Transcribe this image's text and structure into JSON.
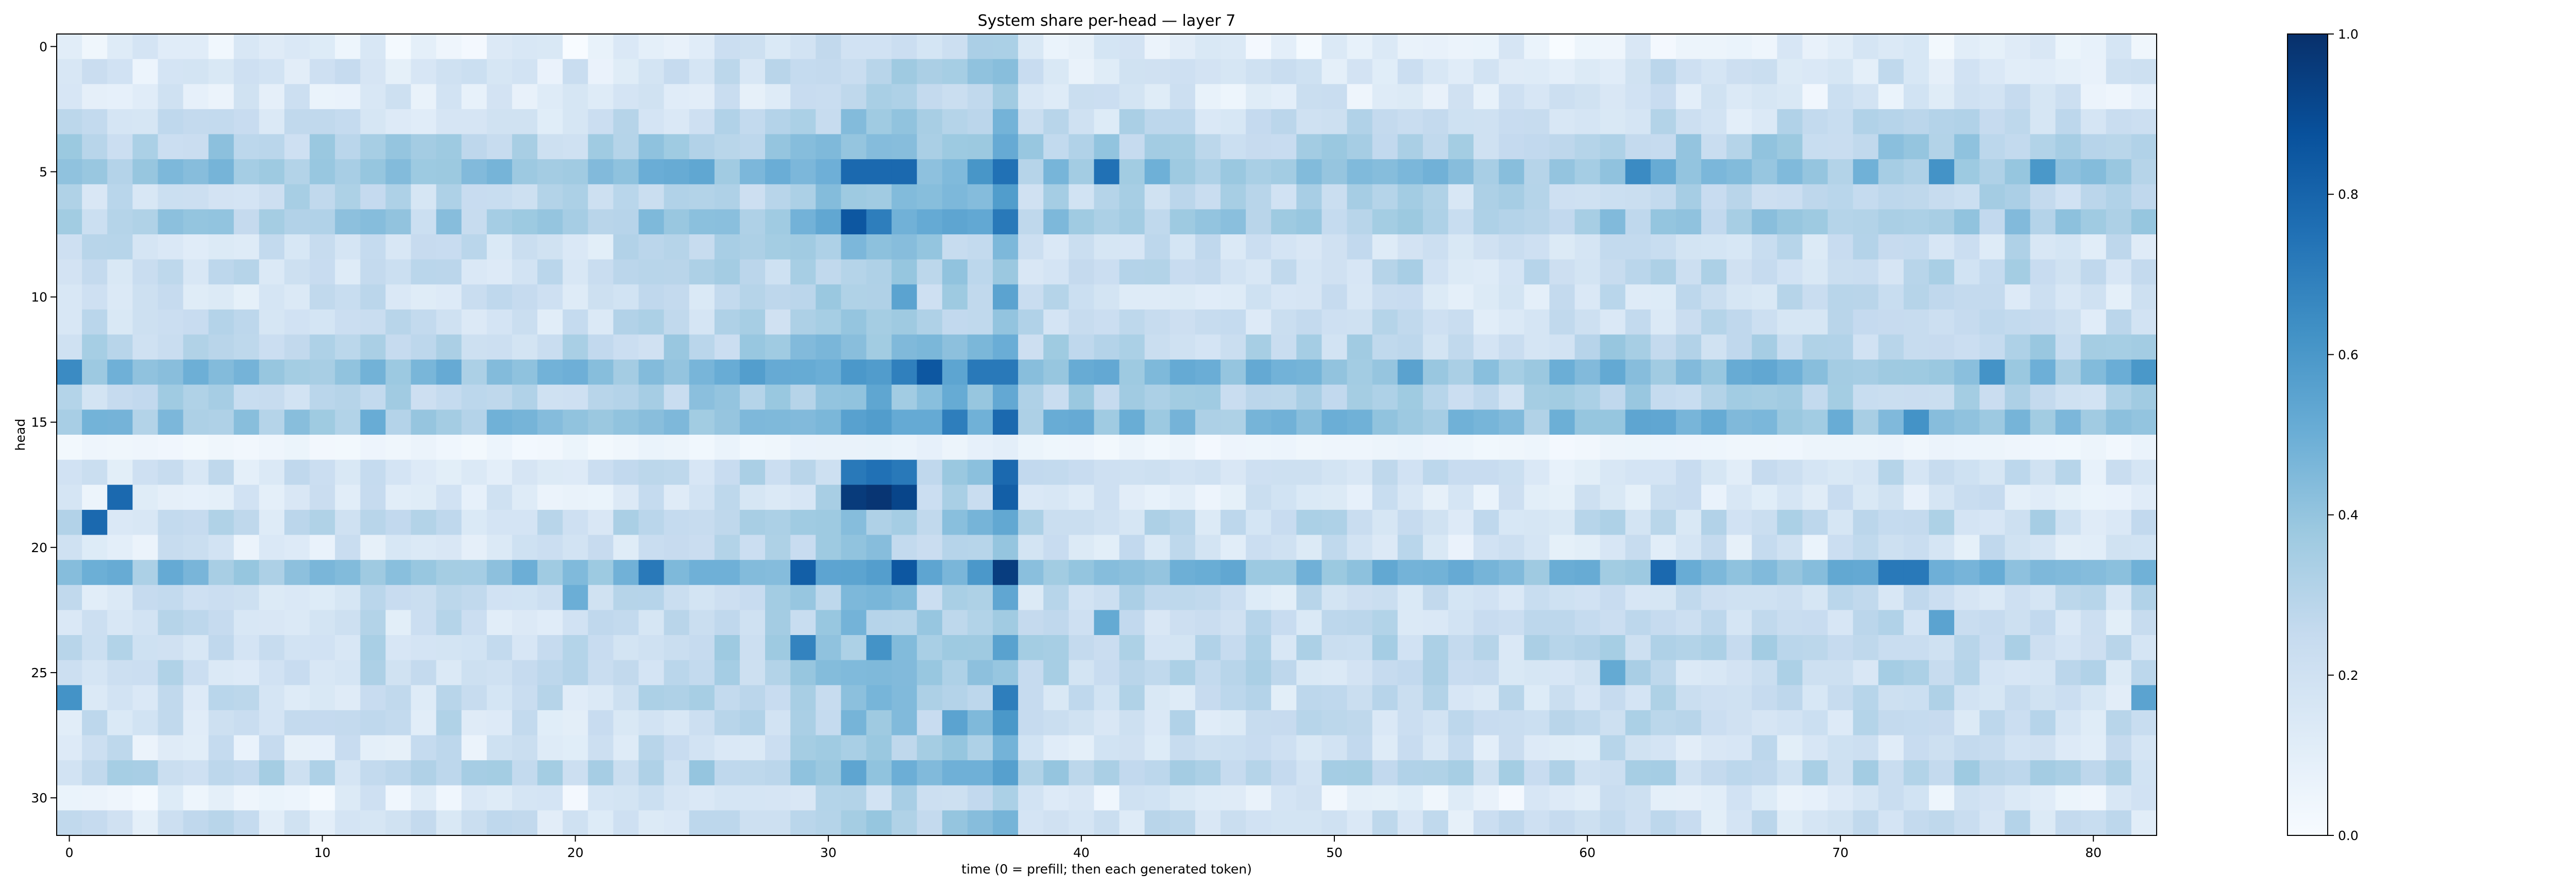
{
  "chart_data": {
    "type": "heatmap",
    "title": "System share per-head — layer 7",
    "xlabel": "time (0 = prefill; then each generated token)",
    "ylabel": "head",
    "colormap": "Blues",
    "colormap_stops": [
      "#f7fbff",
      "#deebf7",
      "#c6dbef",
      "#9ecae1",
      "#6baed6",
      "#4292c6",
      "#2171b5",
      "#08519c",
      "#08306b"
    ],
    "n_rows": 32,
    "n_cols": 83,
    "xlim": [
      -0.5,
      82.5
    ],
    "ylim": [
      31.5,
      -0.5
    ],
    "x_ticks": [
      0,
      10,
      20,
      30,
      40,
      50,
      60,
      70,
      80
    ],
    "y_ticks": [
      0,
      5,
      10,
      15,
      20,
      25,
      30
    ],
    "colorbar": {
      "range": [
        0.0,
        1.0
      ],
      "ticks": [
        0.0,
        0.2,
        0.4,
        0.6,
        0.8,
        1.0
      ],
      "tick_labels": [
        "0.0",
        "0.2",
        "0.4",
        "0.6",
        "0.8",
        "1.0"
      ]
    },
    "row_base": [
      0.08,
      0.15,
      0.12,
      0.2,
      0.3,
      0.38,
      0.25,
      0.32,
      0.2,
      0.22,
      0.18,
      0.2,
      0.26,
      0.42,
      0.28,
      0.4,
      0.04,
      0.18,
      0.14,
      0.22,
      0.16,
      0.42,
      0.2,
      0.2,
      0.24,
      0.22,
      0.2,
      0.2,
      0.16,
      0.26,
      0.1,
      0.18
    ],
    "column_boost": [
      0.0,
      0.0,
      0.02,
      0.0,
      0.0,
      0.0,
      0.02,
      0.0,
      0.0,
      0.0,
      0.0,
      0.0,
      0.02,
      0.0,
      0.0,
      0.02,
      0.0,
      0.0,
      0.0,
      0.0,
      0.0,
      0.0,
      0.02,
      0.04,
      0.04,
      0.06,
      0.06,
      0.06,
      0.08,
      0.12,
      0.12,
      0.18,
      0.18,
      0.18,
      0.12,
      0.14,
      0.16,
      0.26,
      0.02,
      0.04,
      0.02,
      0.02,
      0.04,
      0.02,
      0.02,
      0.0,
      0.02,
      0.02,
      0.0,
      0.02,
      0.02,
      0.02,
      0.02,
      0.04,
      0.02,
      0.0,
      0.0,
      0.0,
      0.0,
      0.0,
      0.02,
      0.04,
      0.04,
      0.04,
      0.02,
      0.02,
      0.0,
      0.02,
      0.02,
      0.0,
      0.02,
      0.02,
      0.04,
      0.04,
      0.04,
      0.02,
      0.02,
      0.04,
      0.04,
      0.02,
      0.0,
      0.0,
      0.02
    ],
    "hot_cells": [
      [
        18,
        31,
        0.96
      ],
      [
        18,
        32,
        0.98
      ],
      [
        18,
        33,
        0.92
      ],
      [
        17,
        31,
        0.72
      ],
      [
        17,
        32,
        0.75
      ],
      [
        17,
        33,
        0.72
      ],
      [
        17,
        37,
        0.78
      ],
      [
        18,
        37,
        0.82
      ],
      [
        21,
        37,
        0.95
      ],
      [
        21,
        29,
        0.82
      ],
      [
        21,
        33,
        0.85
      ],
      [
        13,
        34,
        0.85
      ],
      [
        13,
        36,
        0.72
      ],
      [
        13,
        37,
        0.72
      ],
      [
        5,
        31,
        0.78
      ],
      [
        5,
        32,
        0.78
      ],
      [
        5,
        33,
        0.78
      ],
      [
        5,
        37,
        0.75
      ],
      [
        5,
        41,
        0.75
      ],
      [
        7,
        31,
        0.85
      ],
      [
        7,
        32,
        0.7
      ],
      [
        7,
        37,
        0.72
      ],
      [
        15,
        37,
        0.78
      ],
      [
        15,
        35,
        0.7
      ],
      [
        18,
        2,
        0.78
      ],
      [
        19,
        1,
        0.78
      ],
      [
        21,
        72,
        0.72
      ],
      [
        21,
        73,
        0.72
      ],
      [
        21,
        63,
        0.78
      ],
      [
        21,
        23,
        0.72
      ],
      [
        13,
        0,
        0.65
      ],
      [
        26,
        0,
        0.62
      ],
      [
        13,
        82,
        0.6
      ],
      [
        26,
        82,
        0.55
      ],
      [
        5,
        62,
        0.65
      ],
      [
        24,
        32,
        0.62
      ],
      [
        24,
        29,
        0.68
      ],
      [
        26,
        37,
        0.7
      ],
      [
        27,
        37,
        0.6
      ],
      [
        27,
        35,
        0.55
      ],
      [
        15,
        73,
        0.62
      ],
      [
        5,
        74,
        0.62
      ],
      [
        5,
        78,
        0.6
      ],
      [
        13,
        76,
        0.62
      ],
      [
        10,
        33,
        0.55
      ],
      [
        10,
        37,
        0.55
      ],
      [
        23,
        41,
        0.52
      ],
      [
        23,
        74,
        0.55
      ],
      [
        25,
        61,
        0.52
      ],
      [
        22,
        20,
        0.5
      ]
    ]
  }
}
